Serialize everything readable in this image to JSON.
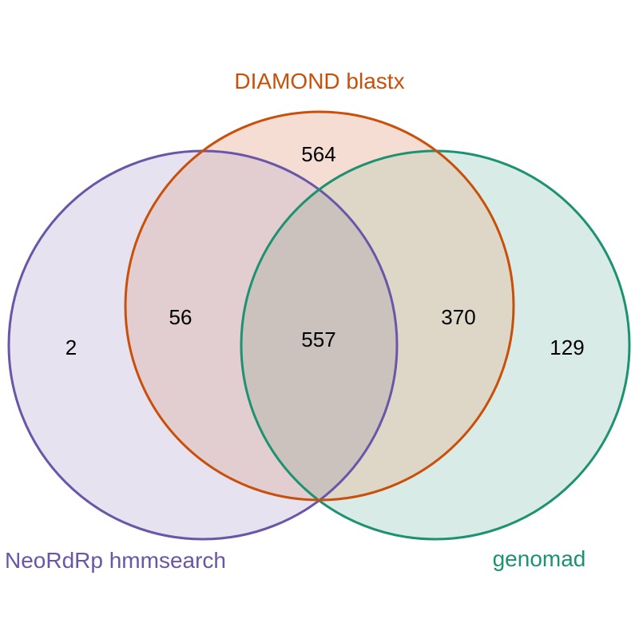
{
  "sets": [
    {
      "label": "NeoRdRp hmmsearch",
      "color": "#6a56a8",
      "fill": "#e6e2ef"
    },
    {
      "label": "DIAMOND blastx",
      "color": "#c9500a",
      "fill": "#f5ddd4"
    },
    {
      "label": "genomad",
      "color": "#1d9271",
      "fill": "#d9ebe6"
    }
  ],
  "counts": {
    "neordrp_only": "2",
    "diamond_only": "564",
    "genomad_only": "129",
    "neordrp_diamond": "56",
    "diamond_genomad": "370",
    "all_three": "557"
  },
  "colors": {
    "overlap_neordrp_diamond": "#e2cdd0",
    "overlap_diamond_genomad": "#ded7c8",
    "overlap_all": "#cbc2bd",
    "overlap_neordrp_genomad": "#d8d5d7"
  }
}
